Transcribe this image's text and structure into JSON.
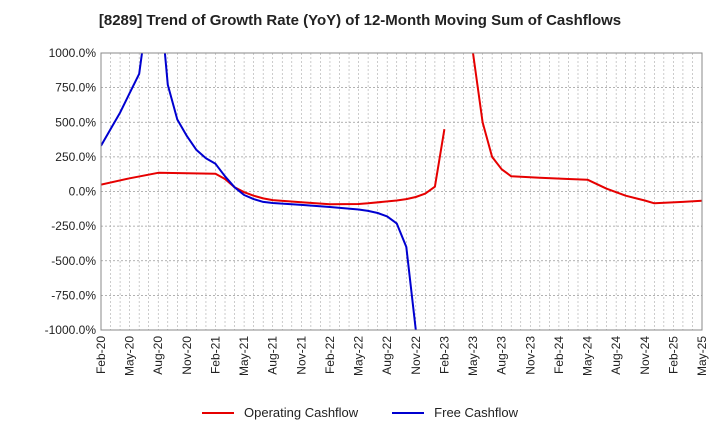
{
  "chart_data": {
    "type": "line",
    "title": "[8289]  Trend of Growth Rate (YoY) of 12-Month Moving Sum of Cashflows",
    "xlabel": "",
    "ylabel": "",
    "ylim": [
      -1000,
      1000
    ],
    "grid": true,
    "legend_position": "bottom",
    "y_ticks": [
      "1000.0%",
      "750.0%",
      "500.0%",
      "250.0%",
      "0.0%",
      "-250.0%",
      "-500.0%",
      "-750.0%",
      "-1000.0%"
    ],
    "y_tick_values": [
      1000,
      750,
      500,
      250,
      0,
      -250,
      -500,
      -750,
      -1000
    ],
    "x_ticks": [
      "Feb-20",
      "May-20",
      "Aug-20",
      "Nov-20",
      "Feb-21",
      "May-21",
      "Aug-21",
      "Nov-21",
      "Feb-22",
      "May-22",
      "Aug-22",
      "Nov-22",
      "Feb-23",
      "May-23",
      "Aug-23",
      "Nov-23",
      "Feb-24",
      "May-24",
      "Aug-24",
      "Nov-24",
      "Feb-25",
      "May-25"
    ],
    "series": [
      {
        "name": "Operating Cashflow",
        "color": "#e60000",
        "segments": [
          [
            [
              0,
              50
            ],
            [
              3,
              95
            ],
            [
              6,
              135
            ],
            [
              9,
              132
            ],
            [
              12,
              128
            ],
            [
              13,
              90
            ],
            [
              14,
              30
            ],
            [
              15,
              -5
            ],
            [
              16,
              -30
            ],
            [
              17,
              -50
            ],
            [
              18,
              -62
            ],
            [
              21,
              -78
            ],
            [
              24,
              -92
            ],
            [
              27,
              -90
            ],
            [
              28,
              -85
            ],
            [
              31,
              -65
            ],
            [
              32,
              -55
            ],
            [
              33,
              -40
            ],
            [
              34,
              -15
            ],
            [
              35,
              35
            ],
            [
              36,
              450
            ]
          ],
          [
            [
              39,
              1000
            ],
            [
              40,
              500
            ],
            [
              41,
              250
            ],
            [
              42,
              160
            ],
            [
              43,
              110
            ],
            [
              46,
              100
            ],
            [
              49,
              90
            ],
            [
              51,
              85
            ],
            [
              53,
              20
            ],
            [
              55,
              -30
            ],
            [
              57,
              -65
            ],
            [
              58,
              -85
            ],
            [
              61,
              -75
            ],
            [
              64,
              -62
            ]
          ]
        ]
      },
      {
        "name": "Free Cashflow",
        "color": "#0000d0",
        "segments": [
          [
            [
              0,
              330
            ],
            [
              1,
              450
            ],
            [
              2,
              570
            ],
            [
              3,
              710
            ],
            [
              4,
              850
            ],
            [
              4.3,
              1000
            ]
          ],
          [
            [
              6.7,
              1000
            ],
            [
              7,
              770
            ],
            [
              8,
              520
            ],
            [
              9,
              400
            ],
            [
              10,
              300
            ],
            [
              11,
              240
            ],
            [
              12,
              200
            ],
            [
              13,
              110
            ],
            [
              14,
              30
            ],
            [
              15,
              -25
            ],
            [
              16,
              -55
            ],
            [
              17,
              -75
            ],
            [
              18,
              -83
            ],
            [
              21,
              -97
            ],
            [
              24,
              -112
            ],
            [
              27,
              -130
            ],
            [
              28,
              -140
            ],
            [
              29,
              -155
            ],
            [
              30,
              -180
            ],
            [
              31,
              -230
            ],
            [
              32,
              -400
            ],
            [
              33,
              -1000
            ]
          ]
        ]
      }
    ]
  }
}
